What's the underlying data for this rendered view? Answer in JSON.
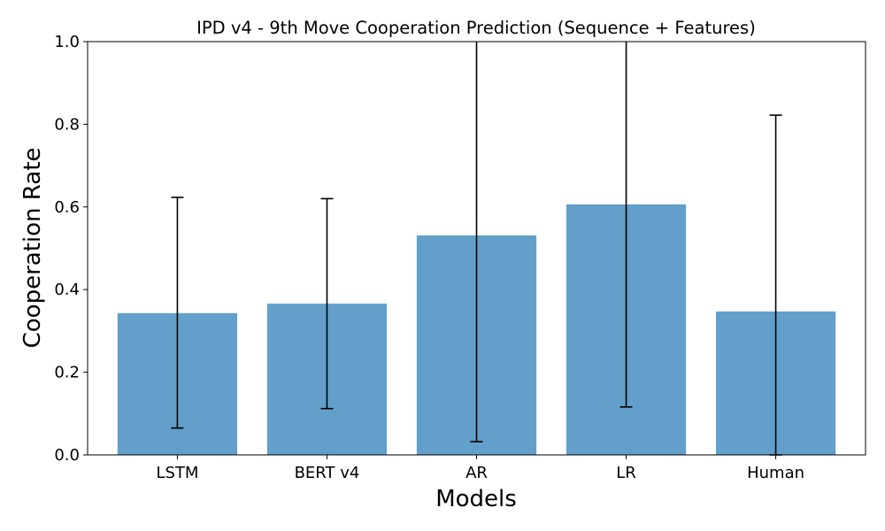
{
  "chart_data": {
    "type": "bar",
    "title": "IPD v4 - 9th Move Cooperation Prediction (Sequence + Features)",
    "xlabel": "Models",
    "ylabel": "Cooperation Rate",
    "categories": [
      "LSTM",
      "BERT v4",
      "AR",
      "LR",
      "Human"
    ],
    "values": [
      0.343,
      0.366,
      0.531,
      0.606,
      0.347
    ],
    "error_low": [
      0.065,
      0.112,
      0.032,
      0.116,
      0.0
    ],
    "error_high": [
      0.623,
      0.62,
      1.03,
      1.1,
      0.822
    ],
    "ylim": [
      0,
      1.0
    ],
    "yticks": [
      "0.0",
      "0.2",
      "0.4",
      "0.6",
      "0.8",
      "1.0"
    ],
    "bar_color": "#629fca",
    "grid": false,
    "legend": "none"
  }
}
